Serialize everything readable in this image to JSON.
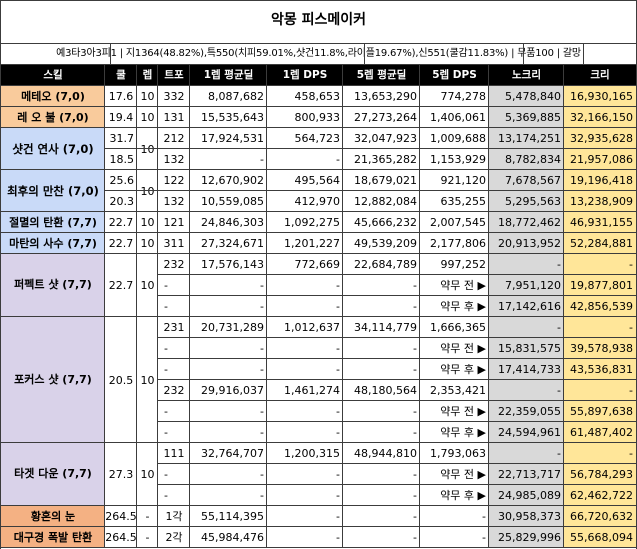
{
  "title": "악몽 피스메이커",
  "subtitle": "예3타3아3피1 | 지1364(48.82%),특550(치피59.01%,샷건11.8%,라이플19.67%),신551(쿨감11.83%) | 무품100 | 갈망",
  "headers": [
    "스킬",
    "쿨",
    "렙",
    "트포",
    "1렙 평균딜",
    "1렙 DPS",
    "5렙 평균딜",
    "5렙 DPS",
    "노크리",
    "크리"
  ],
  "skills": [
    {
      "name": "메테오 (7,0)",
      "cd": "17.6",
      "lv": "10",
      "rows": [
        {
          "tripod": "332",
          "dmg1": "8,087,682",
          "dps1": "458,653",
          "dmg5": "13,653,290",
          "dps5": "774,278",
          "nocrit": "5,478,840",
          "crit": "16,930,165"
        }
      ]
    },
    {
      "name": "레 오 불 (7,0)",
      "cd": "19.4",
      "lv": "10",
      "rows": [
        {
          "tripod": "131",
          "dmg1": "15,535,643",
          "dps1": "800,933",
          "dmg5": "27,273,264",
          "dps5": "1,406,061",
          "nocrit": "5,369,885",
          "crit": "32,166,150"
        }
      ]
    },
    {
      "name": "샷건 연사 (7,0)",
      "lv": "10",
      "rows": [
        {
          "cd": "31.7",
          "tripod": "212",
          "dmg1": "17,924,531",
          "dps1": "564,723",
          "dmg5": "32,047,923",
          "dps5": "1,009,688",
          "nocrit": "13,174,251",
          "crit": "32,935,628"
        },
        {
          "cd": "18.5",
          "tripod": "132",
          "dmg1": "-",
          "dps1": "-",
          "dmg5": "21,365,282",
          "dps5": "1,153,929",
          "nocrit": "8,782,834",
          "crit": "21,957,086"
        }
      ]
    },
    {
      "name": "최후의 만찬 (7,0)",
      "lv": "10",
      "rows": [
        {
          "cd": "25.6",
          "tripod": "122",
          "dmg1": "12,670,902",
          "dps1": "495,564",
          "dmg5": "18,679,021",
          "dps5": "921,120",
          "nocrit": "7,678,567",
          "crit": "19,196,418"
        },
        {
          "cd": "20.3",
          "tripod": "132",
          "dmg1": "10,559,085",
          "dps1": "412,970",
          "dmg5": "12,882,084",
          "dps5": "635,255",
          "nocrit": "5,295,563",
          "crit": "13,238,909"
        }
      ]
    },
    {
      "name": "절멸의 탄환 (7,7)",
      "cd": "22.7",
      "lv": "10",
      "rows": [
        {
          "tripod": "121",
          "dmg1": "24,846,303",
          "dps1": "1,092,275",
          "dmg5": "45,666,232",
          "dps5": "2,007,545",
          "nocrit": "18,772,462",
          "crit": "46,931,155"
        }
      ]
    },
    {
      "name": "마탄의 사수 (7,7)",
      "cd": "22.7",
      "lv": "10",
      "rows": [
        {
          "tripod": "311",
          "dmg1": "27,324,671",
          "dps1": "1,201,227",
          "dmg5": "49,539,209",
          "dps5": "2,177,806",
          "nocrit": "20,913,952",
          "crit": "52,284,881"
        }
      ]
    },
    {
      "name": "퍼펙트 샷 (7,7)",
      "cd": "22.7",
      "lv": "10",
      "rows": [
        {
          "tripod": "232",
          "dmg1": "17,576,143",
          "dps1": "772,669",
          "dmg5": "22,684,789",
          "dps5": "997,252",
          "nocrit": "-",
          "crit": "-"
        },
        {
          "tripod": "-",
          "dmg1": "-",
          "dps1": "-",
          "dmg5": "-",
          "dps5": "약무 전 ▶",
          "nocrit": "7,951,120",
          "crit": "19,877,801"
        },
        {
          "tripod": "-",
          "dmg1": "-",
          "dps1": "-",
          "dmg5": "-",
          "dps5": "약무 후 ▶",
          "nocrit": "17,142,616",
          "crit": "42,856,539"
        }
      ]
    },
    {
      "name": "포커스 샷 (7,7)",
      "cd": "20.5",
      "lv": "10",
      "rows": [
        {
          "tripod": "231",
          "dmg1": "20,731,289",
          "dps1": "1,012,637",
          "dmg5": "34,114,779",
          "dps5": "1,666,365",
          "nocrit": "-",
          "crit": "-"
        },
        {
          "tripod": "-",
          "dmg1": "-",
          "dps1": "-",
          "dmg5": "-",
          "dps5": "약무 전 ▶",
          "nocrit": "15,831,575",
          "crit": "39,578,938"
        },
        {
          "tripod": "-",
          "dmg1": "-",
          "dps1": "-",
          "dmg5": "-",
          "dps5": "약무 후 ▶",
          "nocrit": "17,414,733",
          "crit": "43,536,831"
        },
        {
          "tripod": "232",
          "dmg1": "29,916,037",
          "dps1": "1,461,274",
          "dmg5": "48,180,564",
          "dps5": "2,353,421",
          "nocrit": "-",
          "crit": "-"
        },
        {
          "tripod": "-",
          "dmg1": "-",
          "dps1": "-",
          "dmg5": "-",
          "dps5": "약무 전 ▶",
          "nocrit": "22,359,055",
          "crit": "55,897,638"
        },
        {
          "tripod": "-",
          "dmg1": "-",
          "dps1": "-",
          "dmg5": "-",
          "dps5": "약무 후 ▶",
          "nocrit": "24,594,961",
          "crit": "61,487,402"
        }
      ]
    },
    {
      "name": "타겟 다운 (7,7)",
      "cd": "27.3",
      "lv": "10",
      "rows": [
        {
          "tripod": "111",
          "dmg1": "32,764,707",
          "dps1": "1,200,315",
          "dmg5": "48,944,810",
          "dps5": "1,793,063",
          "nocrit": "-",
          "crit": "-"
        },
        {
          "tripod": "-",
          "dmg1": "-",
          "dps1": "-",
          "dmg5": "-",
          "dps5": "약무 전 ▶",
          "nocrit": "22,713,717",
          "crit": "56,784,293"
        },
        {
          "tripod": "-",
          "dmg1": "-",
          "dps1": "-",
          "dmg5": "-",
          "dps5": "약무 후 ▶",
          "nocrit": "24,985,089",
          "crit": "62,462,722"
        }
      ]
    },
    {
      "name": "황혼의 눈",
      "cd": "264.5",
      "lv": "-",
      "rows": [
        {
          "tripod": "1각",
          "dmg1": "55,114,395",
          "dps1": "-",
          "dmg5": "-",
          "dps5": "-",
          "nocrit": "30,958,373",
          "crit": "66,720,632"
        }
      ]
    },
    {
      "name": "대구경 폭발 탄환",
      "cd": "264.5",
      "lv": "-",
      "rows": [
        {
          "tripod": "2각",
          "dmg1": "45,984,476",
          "dps1": "-",
          "dmg5": "-",
          "dps5": "-",
          "nocrit": "25,829,996",
          "crit": "55,668,094"
        }
      ]
    }
  ],
  "colors": {
    "header_bg": "#000000",
    "header_text": "#ffffff",
    "skill_orange": "#f9cb9c",
    "skill_blue": "#c9daf8",
    "skill_purple": "#d9d2e9",
    "skill_salmon": "#f4b183",
    "nocrit_gray": "#d9d9d9",
    "crit_yellow": "#ffe699",
    "grid": "#3c3c3c"
  }
}
